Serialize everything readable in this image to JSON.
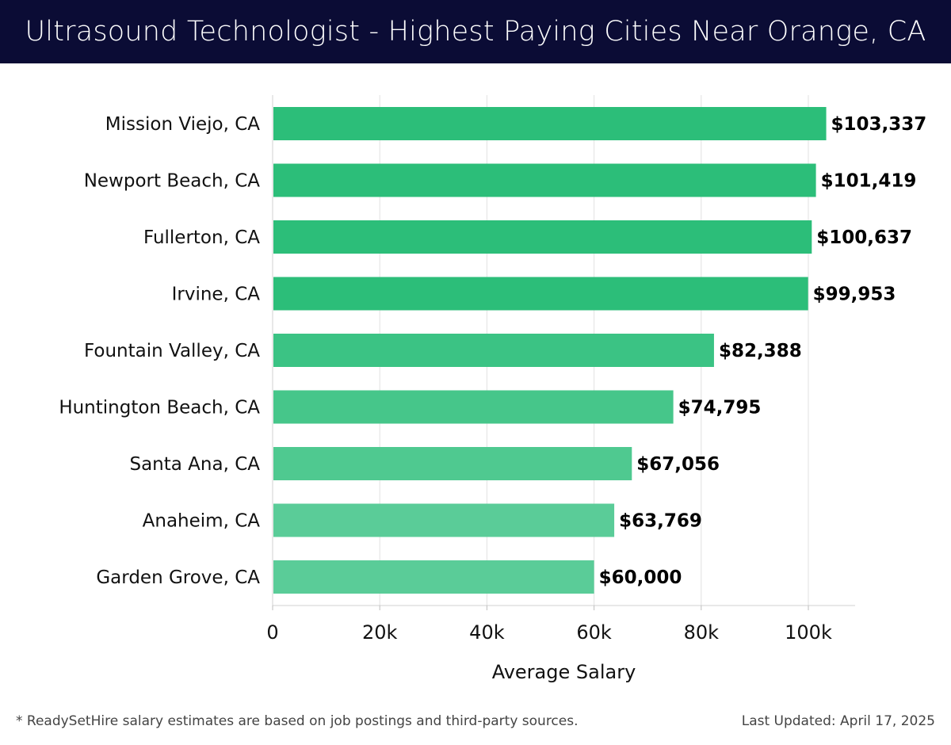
{
  "header": {
    "title": "Ultrasound Technologist - Highest Paying Cities Near Orange, CA"
  },
  "footer": {
    "note": "* ReadySetHire salary estimates are based on job postings and third-party sources.",
    "updated": "Last Updated: April 17, 2025"
  },
  "colors": {
    "header_bg": "#0b0c35",
    "bar_high": "#2cbe79",
    "bar_low": "#5acc98"
  },
  "chart_data": {
    "type": "bar",
    "orientation": "horizontal",
    "title": "Ultrasound Technologist - Highest Paying Cities Near Orange, CA",
    "xlabel": "Average Salary",
    "ylabel": "",
    "xlim": [
      0,
      108500
    ],
    "xticks": [
      0,
      20000,
      40000,
      60000,
      80000,
      100000
    ],
    "xtick_labels": [
      "0",
      "20k",
      "40k",
      "60k",
      "80k",
      "100k"
    ],
    "grid": "vertical",
    "categories": [
      "Mission Viejo, CA",
      "Newport Beach, CA",
      "Fullerton, CA",
      "Irvine, CA",
      "Fountain Valley, CA",
      "Huntington Beach, CA",
      "Santa Ana, CA",
      "Anaheim, CA",
      "Garden Grove, CA"
    ],
    "values": [
      103337,
      101419,
      100637,
      99953,
      82388,
      74795,
      67056,
      63769,
      60000
    ],
    "value_labels": [
      "$103,337",
      "$101,419",
      "$100,637",
      "$99,953",
      "$82,388",
      "$74,795",
      "$67,056",
      "$63,769",
      "$60,000"
    ]
  }
}
